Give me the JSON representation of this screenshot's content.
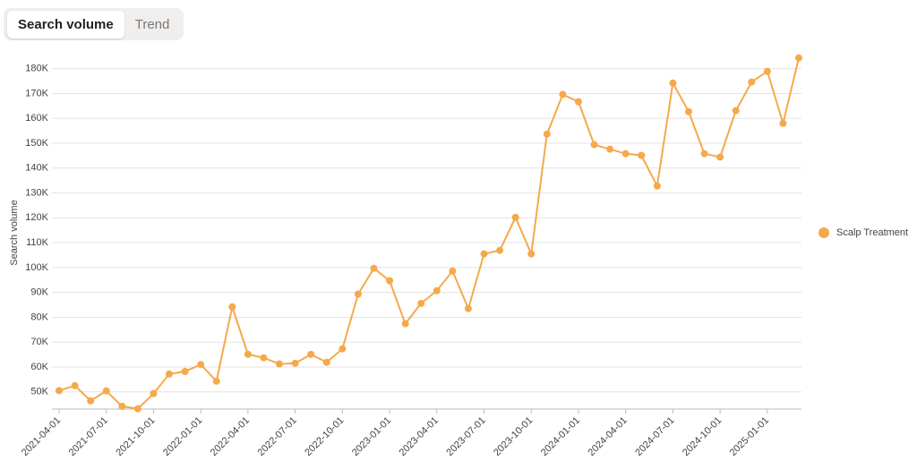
{
  "tabs": [
    "Search volume",
    "Trend"
  ],
  "chart_data": {
    "type": "line",
    "y_label": "Search volume",
    "categories": [
      "2021-04-01",
      null,
      null,
      "2021-07-01",
      null,
      null,
      "2021-10-01",
      null,
      null,
      "2022-01-01",
      null,
      null,
      "2022-04-01",
      null,
      null,
      "2022-07-01",
      null,
      null,
      "2022-10-01",
      null,
      null,
      "2023-01-01",
      null,
      null,
      "2023-04-01",
      null,
      null,
      "2023-07-01",
      null,
      null,
      "2023-10-01",
      null,
      null,
      "2024-01-01",
      null,
      null,
      "2024-04-01",
      null,
      null,
      "2024-07-01",
      null,
      null,
      "2024-10-01",
      null,
      null,
      "2025-01-01",
      null,
      null
    ],
    "series": [
      {
        "name": "Scalp Treatment",
        "color": "#f5a94a",
        "values": [
          50500,
          52500,
          46400,
          50400,
          44200,
          43200,
          49300,
          57200,
          58200,
          61000,
          54300,
          84200,
          65100,
          63700,
          61200,
          61500,
          65100,
          61900,
          67300,
          89300,
          99700,
          94700,
          77400,
          85600,
          90700,
          98600,
          83500,
          105500,
          106900,
          120200,
          105500,
          153700,
          169600,
          166700,
          149400,
          147600,
          145800,
          145100,
          132800,
          174200,
          162700,
          145800,
          144400,
          163100,
          174600,
          178900,
          158000,
          184300
        ]
      }
    ],
    "ylim": [
      42000,
      186000
    ],
    "yticks": [
      {
        "value": 50000,
        "label": "50K"
      },
      {
        "value": 60000,
        "label": "60K"
      },
      {
        "value": 70000,
        "label": "70K"
      },
      {
        "value": 80000,
        "label": "80K"
      },
      {
        "value": 90000,
        "label": "90K"
      },
      {
        "value": 100000,
        "label": "100K"
      },
      {
        "value": 110000,
        "label": "110K"
      },
      {
        "value": 120000,
        "label": "120K"
      },
      {
        "value": 130000,
        "label": "130K"
      },
      {
        "value": 140000,
        "label": "140K"
      },
      {
        "value": 150000,
        "label": "150K"
      },
      {
        "value": 160000,
        "label": "160K"
      },
      {
        "value": 170000,
        "label": "170K"
      },
      {
        "value": 180000,
        "label": "180K"
      }
    ],
    "grid": true,
    "legend": "right"
  }
}
